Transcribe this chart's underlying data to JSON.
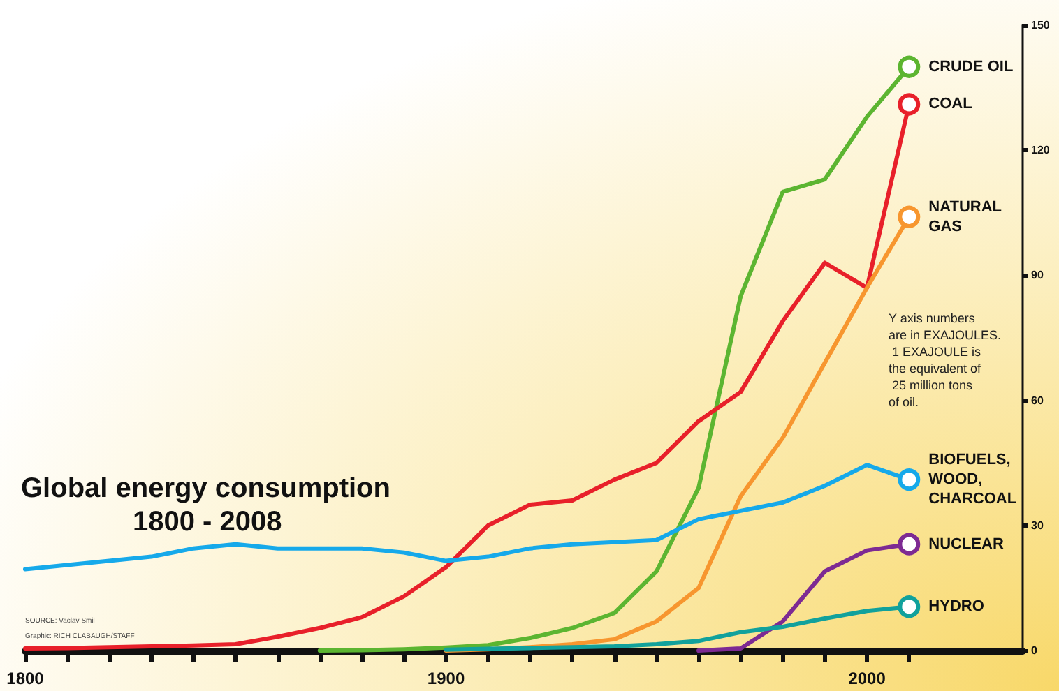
{
  "chart_data": {
    "type": "line",
    "title": "Global energy consumption",
    "subtitle": "1800 - 2008",
    "annotations": [
      "Y axis numbers are in EXAJOULES. 1 EXAJOULE is the equivalent of 25 million tons of oil.",
      "SOURCE: Vaclav Smil",
      "Graphic: RICH CLABAUGH/STAFF"
    ],
    "x": [
      1800,
      1810,
      1820,
      1830,
      1840,
      1850,
      1860,
      1870,
      1880,
      1890,
      1900,
      1910,
      1920,
      1930,
      1940,
      1950,
      1960,
      1970,
      1980,
      1990,
      2000,
      2010
    ],
    "series": [
      {
        "name": "CRUDE OIL",
        "color": "#5cb531",
        "values": [
          null,
          null,
          null,
          null,
          null,
          null,
          null,
          0,
          0.1,
          0.3,
          0.7,
          1.3,
          3,
          5.4,
          9,
          19,
          39,
          85,
          110,
          113,
          128,
          140
        ]
      },
      {
        "name": "COAL",
        "color": "#e8202a",
        "values": [
          0.5,
          0.6,
          0.8,
          1,
          1.2,
          1.5,
          3.3,
          5.4,
          8,
          13,
          20,
          30,
          35,
          36,
          41,
          45,
          55,
          62,
          79,
          93,
          87,
          131
        ]
      },
      {
        "name": "NATURAL GAS",
        "color": "#f7962f",
        "values": [
          null,
          null,
          null,
          null,
          null,
          null,
          null,
          null,
          null,
          null,
          0,
          0.3,
          0.8,
          1.5,
          2.7,
          7,
          15,
          37,
          51,
          69,
          87,
          104
        ]
      },
      {
        "name": "BIOFUELS, WOOD, CHARCOAL",
        "color": "#16a9ea",
        "values": [
          19.5,
          20.5,
          21.5,
          22.5,
          24.5,
          25.5,
          24.5,
          24.5,
          24.5,
          23.5,
          21.5,
          22.5,
          24.5,
          25.5,
          26,
          26.5,
          31.5,
          33.5,
          35.5,
          39.5,
          44.5,
          41
        ]
      },
      {
        "name": "NUCLEAR",
        "color": "#7d2a93",
        "values": [
          null,
          null,
          null,
          null,
          null,
          null,
          null,
          null,
          null,
          null,
          null,
          null,
          null,
          null,
          null,
          null,
          0,
          0.5,
          7,
          19,
          24,
          25.5
        ]
      },
      {
        "name": "HYDRO",
        "color": "#11a19c",
        "values": [
          null,
          null,
          null,
          null,
          null,
          null,
          null,
          null,
          null,
          null,
          0.2,
          0.4,
          0.6,
          0.8,
          1,
          1.5,
          2.3,
          4.4,
          5.7,
          7.7,
          9.5,
          10.5
        ]
      }
    ],
    "xlim": [
      1800,
      2037
    ],
    "xticks": [
      1800,
      {
        "value": 1810,
        "label": null
      },
      {
        "value": 1820,
        "label": null
      },
      {
        "value": 1830,
        "label": null
      },
      {
        "value": 1840,
        "label": null
      },
      {
        "value": 1850,
        "label": null
      },
      {
        "value": 1860,
        "label": null
      },
      {
        "value": 1870,
        "label": null
      },
      {
        "value": 1880,
        "label": null
      },
      {
        "value": 1890,
        "label": null
      },
      1900,
      {
        "value": 1910,
        "label": null
      },
      {
        "value": 1920,
        "label": null
      },
      {
        "value": 1930,
        "label": null
      },
      {
        "value": 1940,
        "label": null
      },
      {
        "value": 1950,
        "label": null
      },
      {
        "value": 1960,
        "label": null
      },
      {
        "value": 1970,
        "label": null
      },
      {
        "value": 1980,
        "label": null
      },
      {
        "value": 1990,
        "label": null
      },
      2000,
      {
        "value": 2010,
        "label": null
      }
    ],
    "ylim": [
      0,
      150
    ],
    "yticks": [
      0,
      30,
      60,
      90,
      120,
      150
    ]
  }
}
